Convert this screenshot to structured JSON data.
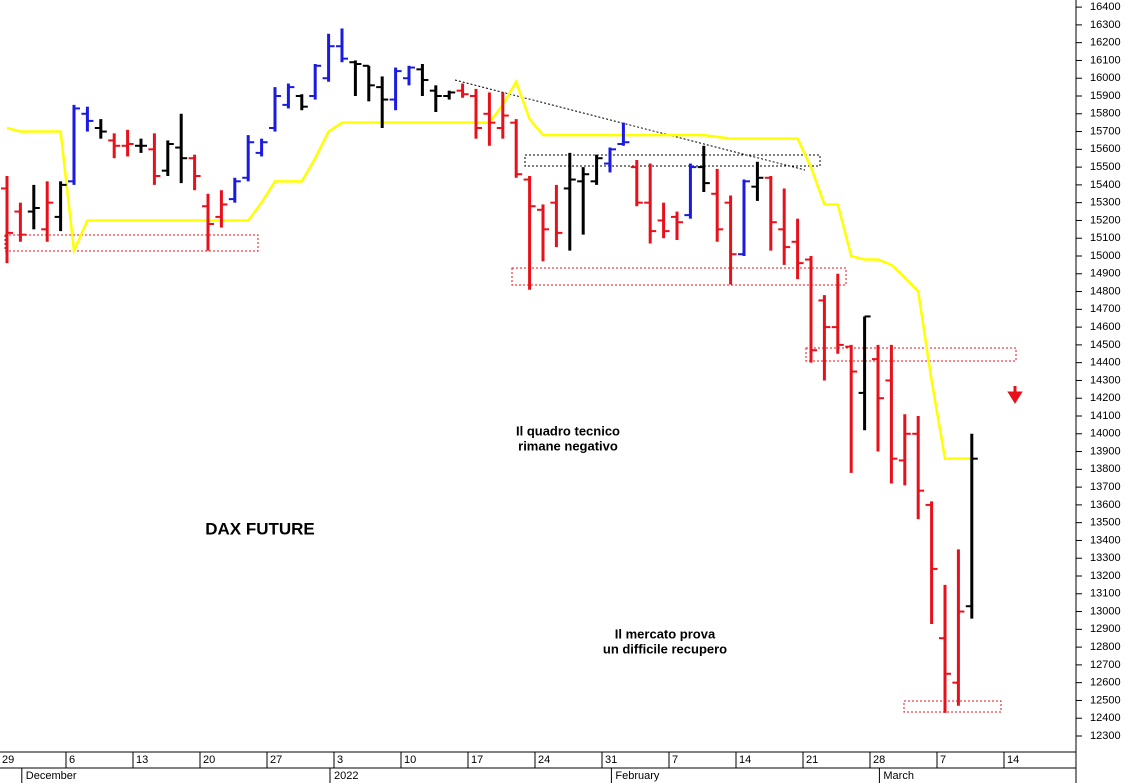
{
  "chart_data": {
    "type": "ohlc",
    "title": "DAX FUTURE",
    "annotations": [
      {
        "lines": [
          "Il quadro tecnico",
          "rimane negativo"
        ],
        "color": "#e8101a"
      },
      {
        "lines": [
          "Il mercato prova",
          "un difficile recupero"
        ],
        "color": "#000000"
      }
    ],
    "categories": [
      "29",
      null,
      null,
      null,
      null,
      "6",
      null,
      null,
      null,
      null,
      "13",
      null,
      null,
      null,
      null,
      "20",
      null,
      null,
      null,
      null,
      "27",
      null,
      null,
      null,
      null,
      "3",
      null,
      null,
      null,
      null,
      "10",
      null,
      null,
      null,
      null,
      "17",
      null,
      null,
      null,
      null,
      "24",
      null,
      null,
      null,
      null,
      "31",
      null,
      null,
      null,
      null,
      "7",
      null,
      null,
      null,
      null,
      "14",
      null,
      null,
      null,
      null,
      "21",
      null,
      null,
      null,
      null,
      "28",
      null,
      null,
      null,
      null,
      "7",
      null,
      null,
      null,
      null,
      "14"
    ],
    "months": [
      null,
      null,
      "December",
      null,
      null,
      null,
      null,
      null,
      null,
      null,
      null,
      null,
      null,
      null,
      null,
      null,
      null,
      null,
      null,
      null,
      null,
      null,
      null,
      null,
      null,
      "2022",
      null,
      null,
      null,
      null,
      null,
      null,
      null,
      null,
      null,
      null,
      null,
      null,
      null,
      null,
      null,
      null,
      null,
      null,
      null,
      null,
      "February",
      null,
      null,
      null,
      null,
      null,
      null,
      null,
      null,
      null,
      null,
      null,
      null,
      null,
      null,
      null,
      null,
      null,
      null,
      null,
      "March",
      null,
      null,
      null,
      null,
      null,
      null,
      null,
      null,
      null
    ],
    "ohlc": {
      "open": [
        15380,
        15250,
        15250,
        15150,
        15220,
        15420,
        15800,
        15720,
        15650,
        15620,
        15620,
        15600,
        15480,
        15610,
        15550,
        15280,
        15220,
        15320,
        15440,
        15580,
        15720,
        15850,
        15900,
        15900,
        16000,
        16180,
        16090,
        16070,
        15950,
        15880,
        16000,
        16050,
        15930,
        15900,
        15930,
        15900,
        15800,
        15720,
        15750,
        15430,
        15260,
        15300,
        15380,
        15420,
        15420,
        15520,
        15630,
        15500,
        15300,
        15200,
        15220,
        15230,
        15500,
        15350,
        15300,
        15010,
        15390,
        15440,
        15150,
        15080,
        14980,
        14750,
        14600,
        14490,
        14230,
        14420,
        14300,
        13850,
        14000,
        13600,
        12850,
        12600,
        13030,
        null,
        null,
        null
      ],
      "high": [
        15450,
        15300,
        15400,
        15420,
        15420,
        15850,
        15840,
        15770,
        15690,
        15710,
        15660,
        15690,
        15650,
        15800,
        15570,
        15350,
        15370,
        15440,
        15680,
        15660,
        15950,
        15970,
        15910,
        16080,
        16250,
        16280,
        16100,
        16070,
        16010,
        16060,
        16070,
        16080,
        15960,
        15930,
        15970,
        15940,
        15920,
        15920,
        15770,
        15450,
        15290,
        15400,
        15580,
        15500,
        15570,
        15610,
        15750,
        15540,
        15520,
        15300,
        15250,
        15520,
        15620,
        15490,
        15340,
        15430,
        15530,
        15450,
        15380,
        15210,
        15000,
        14780,
        14900,
        14500,
        14660,
        14500,
        14500,
        14110,
        14100,
        13620,
        13150,
        13350,
        14000,
        null,
        null,
        null
      ],
      "low": [
        14960,
        15080,
        15150,
        15080,
        15140,
        15400,
        15700,
        15660,
        15550,
        15560,
        15580,
        15400,
        15450,
        15410,
        15370,
        15030,
        15160,
        15300,
        15420,
        15560,
        15700,
        15830,
        15820,
        15880,
        15980,
        16090,
        15900,
        15870,
        15720,
        15820,
        15960,
        15900,
        15810,
        15880,
        15890,
        15660,
        15620,
        15660,
        15440,
        14810,
        14970,
        15050,
        15030,
        15120,
        15400,
        15470,
        15620,
        15280,
        15070,
        15100,
        15090,
        15210,
        15360,
        15080,
        14840,
        15000,
        15310,
        15030,
        14950,
        14870,
        14400,
        14300,
        14450,
        13780,
        14020,
        13900,
        13720,
        13710,
        13520,
        12930,
        12430,
        12470,
        12960,
        null,
        null,
        null
      ],
      "close": [
        15130,
        15120,
        15270,
        15300,
        15400,
        15830,
        15760,
        15700,
        15620,
        15630,
        15620,
        15450,
        15630,
        15550,
        15450,
        15180,
        15290,
        15420,
        15640,
        15640,
        15900,
        15950,
        15840,
        16070,
        16180,
        16110,
        16080,
        15960,
        15880,
        16040,
        16060,
        15990,
        15900,
        15920,
        15910,
        15720,
        15750,
        15790,
        15460,
        15280,
        15150,
        15130,
        15430,
        15460,
        15550,
        15600,
        15640,
        15300,
        15140,
        15140,
        15190,
        15500,
        15410,
        15150,
        15010,
        15420,
        15440,
        15190,
        15050,
        14960,
        14470,
        14600,
        14500,
        14350,
        14660,
        14200,
        13860,
        14000,
        13680,
        13240,
        12650,
        13000,
        13860,
        null,
        null,
        null
      ],
      "colors": [
        "#e8101a",
        "#e8101a",
        "#000000",
        "#e8101a",
        "#000000",
        "#1a1ae0",
        "#1a1ae0",
        "#000000",
        "#e8101a",
        "#e8101a",
        "#000000",
        "#e8101a",
        "#000000",
        "#000000",
        "#e8101a",
        "#e8101a",
        "#e8101a",
        "#1a1ae0",
        "#1a1ae0",
        "#1a1ae0",
        "#1a1ae0",
        "#1a1ae0",
        "#000000",
        "#1a1ae0",
        "#1a1ae0",
        "#1a1ae0",
        "#000000",
        "#000000",
        "#000000",
        "#1a1ae0",
        "#1a1ae0",
        "#000000",
        "#000000",
        "#000000",
        "#e8101a",
        "#e8101a",
        "#e8101a",
        "#e8101a",
        "#e8101a",
        "#e8101a",
        "#e8101a",
        "#e8101a",
        "#000000",
        "#000000",
        "#000000",
        "#1a1ae0",
        "#1a1ae0",
        "#e8101a",
        "#e8101a",
        "#e8101a",
        "#e8101a",
        "#1a1ae0",
        "#000000",
        "#e8101a",
        "#e8101a",
        "#1a1ae0",
        "#000000",
        "#e8101a",
        "#e8101a",
        "#e8101a",
        "#e8101a",
        "#e8101a",
        "#e8101a",
        "#e8101a",
        "#000000",
        "#e8101a",
        "#e8101a",
        "#e8101a",
        "#e8101a",
        "#e8101a",
        "#e8101a",
        "#e8101a",
        "#000000",
        null,
        null,
        null
      ]
    },
    "line": {
      "color": "#ffff00",
      "values": [
        15720,
        15700,
        15700,
        15700,
        15700,
        15030,
        15200,
        15200,
        15200,
        15200,
        15200,
        15200,
        15200,
        15200,
        15200,
        15200,
        15200,
        15200,
        15200,
        15300,
        15420,
        15420,
        15420,
        15550,
        15700,
        15750,
        15750,
        15750,
        15750,
        15750,
        15750,
        15750,
        15750,
        15750,
        15750,
        15750,
        15750,
        15850,
        15980,
        15770,
        15680,
        15680,
        15680,
        15680,
        15680,
        15680,
        15680,
        15680,
        15680,
        15680,
        15680,
        15680,
        15680,
        15670,
        15660,
        15660,
        15660,
        15660,
        15660,
        15660,
        15500,
        15290,
        15290,
        15000,
        14980,
        14980,
        14950,
        14880,
        14800,
        14300,
        13860,
        13860,
        13860,
        null,
        null,
        null
      ]
    },
    "ylim": [
      12210,
      16440
    ],
    "yticks": [
      12300,
      12400,
      12500,
      12600,
      12700,
      12800,
      12900,
      13000,
      13100,
      13200,
      13300,
      13400,
      13500,
      13600,
      13700,
      13800,
      13900,
      14000,
      14100,
      14200,
      14300,
      14400,
      14500,
      14600,
      14700,
      14800,
      14900,
      15000,
      15100,
      15200,
      15300,
      15400,
      15500,
      15600,
      15700,
      15800,
      15900,
      16000,
      16100,
      16200,
      16300,
      16400
    ]
  }
}
